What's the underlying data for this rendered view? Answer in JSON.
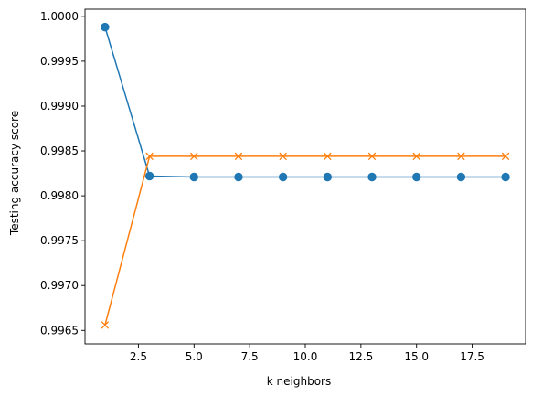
{
  "chart_data": {
    "type": "line",
    "title": "",
    "xlabel": "k neighbors",
    "ylabel": "Testing accuracy score",
    "xlim": [
      0.1,
      19.9
    ],
    "ylim": [
      0.99635,
      1.00008
    ],
    "grid": false,
    "legend": "none",
    "x": [
      1,
      3,
      5,
      7,
      9,
      11,
      13,
      15,
      17,
      19
    ],
    "x_ticks": [
      2.5,
      5.0,
      7.5,
      10.0,
      12.5,
      15.0,
      17.5
    ],
    "x_tick_labels": [
      "2.5",
      "5.0",
      "7.5",
      "10.0",
      "12.5",
      "15.0",
      "17.5"
    ],
    "y_ticks": [
      0.9965,
      0.997,
      0.9975,
      0.998,
      0.9985,
      0.999,
      0.9995,
      1.0
    ],
    "y_tick_labels": [
      "0.9965",
      "0.9970",
      "0.9975",
      "0.9980",
      "0.9985",
      "0.9990",
      "0.9995",
      "1.0000"
    ],
    "series": [
      {
        "marker": "circle",
        "color": "#1f77b4",
        "values": [
          0.99988,
          0.99822,
          0.99821,
          0.99821,
          0.99821,
          0.99821,
          0.99821,
          0.99821,
          0.99821,
          0.99821
        ]
      },
      {
        "marker": "x",
        "color": "#ff7f0e",
        "values": [
          0.99656,
          0.99844,
          0.99844,
          0.99844,
          0.99844,
          0.99844,
          0.99844,
          0.99844,
          0.99844,
          0.99844
        ]
      }
    ]
  }
}
